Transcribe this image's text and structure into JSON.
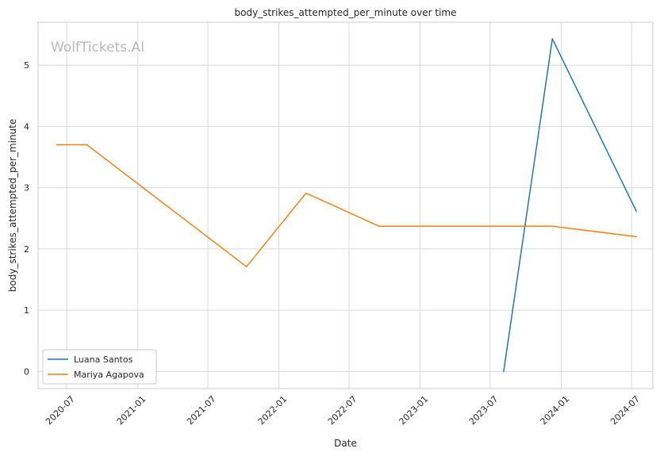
{
  "chart_data": {
    "type": "line",
    "title": "body_strikes_attempted_per_minute over time",
    "xlabel": "Date",
    "ylabel": "body_strikes_attempted_per_minute",
    "watermark": "WolfTickets.AI",
    "xlim": [
      "2020-04-18",
      "2024-08-25"
    ],
    "ylim": [
      -0.28,
      5.7
    ],
    "x_ticks": [
      "2020-07-01",
      "2021-01-01",
      "2021-07-01",
      "2022-01-01",
      "2022-07-01",
      "2023-01-01",
      "2023-07-01",
      "2024-01-01",
      "2024-07-01"
    ],
    "x_tick_labels": [
      "2020-07",
      "2021-01",
      "2021-07",
      "2022-01",
      "2022-07",
      "2023-01",
      "2023-07",
      "2024-01",
      "2024-07"
    ],
    "y_ticks": [
      0,
      1,
      2,
      3,
      4,
      5
    ],
    "y_tick_labels": [
      "0",
      "1",
      "2",
      "3",
      "4",
      "5"
    ],
    "grid": true,
    "legend_position": "lower-left",
    "series": [
      {
        "name": "Luana Santos",
        "color": "#1f77b4",
        "points": [
          {
            "x": "2023-08-05",
            "y": 0.0
          },
          {
            "x": "2023-12-09",
            "y": 5.43
          },
          {
            "x": "2024-07-13",
            "y": 2.62
          }
        ]
      },
      {
        "name": "Mariya Agapova",
        "color": "#ff7f0e",
        "points": [
          {
            "x": "2020-06-06",
            "y": 3.7
          },
          {
            "x": "2020-08-22",
            "y": 3.7
          },
          {
            "x": "2021-10-09",
            "y": 1.71
          },
          {
            "x": "2022-03-12",
            "y": 2.91
          },
          {
            "x": "2022-09-17",
            "y": 2.37
          },
          {
            "x": "2023-12-09",
            "y": 2.37
          },
          {
            "x": "2024-07-13",
            "y": 2.2
          }
        ]
      }
    ]
  }
}
